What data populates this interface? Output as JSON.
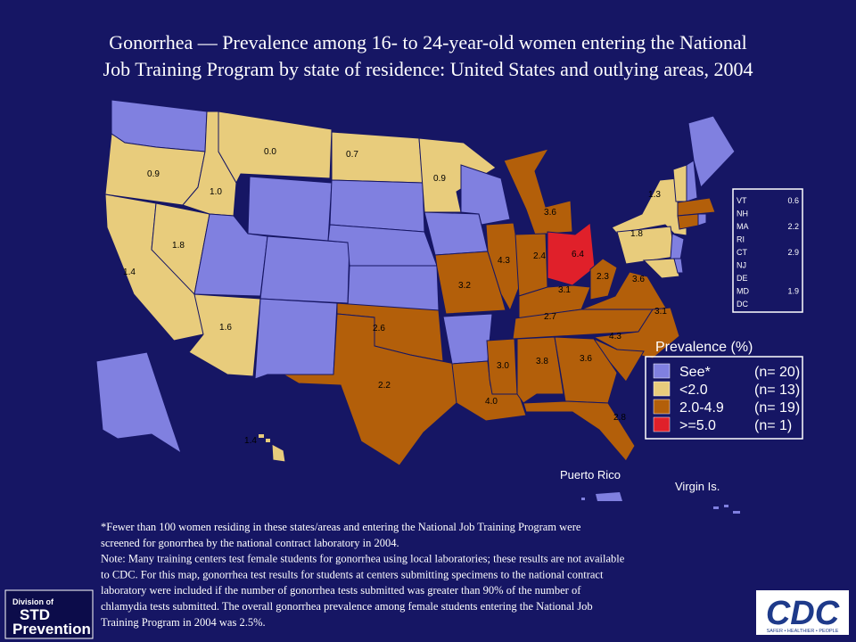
{
  "title": [
    "Gonorrhea — Prevalence among 16- to 24-year-old women entering the National",
    "Job Training Program by state of residence: United States and outlying areas, 2004"
  ],
  "map": {
    "labels": [
      "0.9",
      "0.0",
      "0.7",
      "0.9",
      "1.0",
      "1.8",
      "1.4",
      "1.6",
      "2.6",
      "2.2",
      "3.2",
      "4.3",
      "2.4",
      "3.6",
      "6.4",
      "2.3",
      "3.6",
      "3.1",
      "2.7",
      "3.1",
      "4.3",
      "3.6",
      "3.8",
      "3.0",
      "4.0",
      "2.8",
      "1.3",
      "1.8",
      "1.4"
    ],
    "places": [
      "Puerto Rico",
      "Virgin Is."
    ],
    "inset": [
      [
        "VT",
        "0.6"
      ],
      [
        "NH",
        ""
      ],
      [
        "MA",
        "2.2"
      ],
      [
        "RI",
        ""
      ],
      [
        "CT",
        "2.9"
      ],
      [
        "NJ",
        ""
      ],
      [
        "DE",
        ""
      ],
      [
        "MD",
        "1.9"
      ],
      [
        "DC",
        ""
      ]
    ]
  },
  "legend": {
    "title": "Prevalence (%)",
    "items": [
      [
        "See*",
        "(n= 20)"
      ],
      [
        "<2.0",
        "(n= 13)"
      ],
      [
        "2.0-4.9",
        "(n= 19)"
      ],
      [
        ">=5.0",
        "(n=  1)"
      ]
    ]
  },
  "footnote": [
    "*Fewer  than 100 women residing in these states/areas and entering the National Job Training  Program were",
    "screened for gonorrhea by the national contract laboratory in 2004.",
    "Note: Many training centers test female students for gonorrhea using local laboratories; these results are not available",
    "to CDC. For this map, gonorrhea test results for students at centers submitting specimens to the national contract",
    "laboratory were included if the number of gonorrhea tests submitted was greater than 90% of the number of",
    "chlamydia tests submitted. The overall gonorrhea prevalence among female students entering the National Job",
    "Training  Program in 2004 was 2.5%."
  ],
  "logos": {
    "std": [
      "Division of",
      "STD",
      "Prevention"
    ],
    "cdc": "CDC",
    "cdc_tagline": "SAFER • HEALTHIER • PEOPLE"
  }
}
